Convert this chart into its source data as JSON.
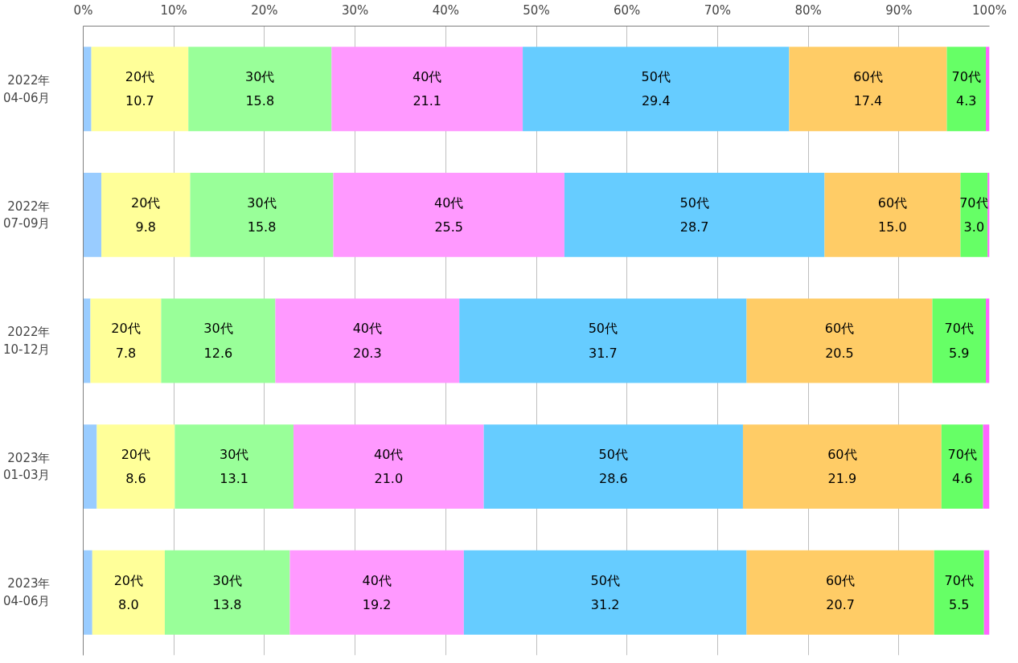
{
  "chart_data": {
    "type": "bar",
    "orientation": "horizontal",
    "stacked": true,
    "grid": "x",
    "categories": [
      "2022年\n04-06月",
      "2022年\n07-09月",
      "2022年\n10-12月",
      "2023年\n01-03月",
      "2023年\n04-06月"
    ],
    "xlim": [
      0,
      100
    ],
    "xticks": [
      {
        "value": 0,
        "label": "0%"
      },
      {
        "value": 10,
        "label": "10%"
      },
      {
        "value": 20,
        "label": "20%"
      },
      {
        "value": 30,
        "label": "30%"
      },
      {
        "value": 40,
        "label": "40%"
      },
      {
        "value": 50,
        "label": "50%"
      },
      {
        "value": 60,
        "label": "60%"
      },
      {
        "value": 70,
        "label": "70%"
      },
      {
        "value": 80,
        "label": "80%"
      },
      {
        "value": 90,
        "label": "90%"
      },
      {
        "value": 100,
        "label": "100%"
      }
    ],
    "series": [
      {
        "color": "#99ccff",
        "values": [
          0.9,
          2.0,
          0.8,
          1.5,
          1.0
        ]
      },
      {
        "name": "20代",
        "color": "#ffff99",
        "values": [
          10.7,
          9.8,
          7.8,
          8.6,
          8.0
        ],
        "value_labels": [
          "10.7",
          "9.8",
          "7.8",
          "8.6",
          "8.0"
        ]
      },
      {
        "name": "30代",
        "color": "#99ff99",
        "values": [
          15.8,
          15.8,
          12.6,
          13.1,
          13.8
        ],
        "value_labels": [
          "15.8",
          "15.8",
          "12.6",
          "13.1",
          "13.8"
        ]
      },
      {
        "name": "40代",
        "color": "#ff99ff",
        "values": [
          21.1,
          25.5,
          20.3,
          21.0,
          19.2
        ],
        "value_labels": [
          "21.1",
          "25.5",
          "20.3",
          "21.0",
          "19.2"
        ]
      },
      {
        "name": "50代",
        "color": "#66ccff",
        "values": [
          29.4,
          28.7,
          31.7,
          28.6,
          31.2
        ],
        "value_labels": [
          "29.4",
          "28.7",
          "31.7",
          "28.6",
          "31.2"
        ]
      },
      {
        "name": "60代",
        "color": "#ffcc66",
        "values": [
          17.4,
          15.0,
          20.5,
          21.9,
          20.7
        ],
        "value_labels": [
          "17.4",
          "15.0",
          "20.5",
          "21.9",
          "20.7"
        ]
      },
      {
        "name": "70代",
        "color": "#66ff66",
        "values": [
          4.3,
          3.0,
          5.9,
          4.6,
          5.5
        ],
        "value_labels": [
          "4.3",
          "3.0",
          "5.9",
          "4.6",
          "5.5"
        ]
      },
      {
        "color": "#ff66ff",
        "values": [
          0.4,
          0.2,
          0.4,
          0.7,
          0.6
        ]
      }
    ]
  }
}
